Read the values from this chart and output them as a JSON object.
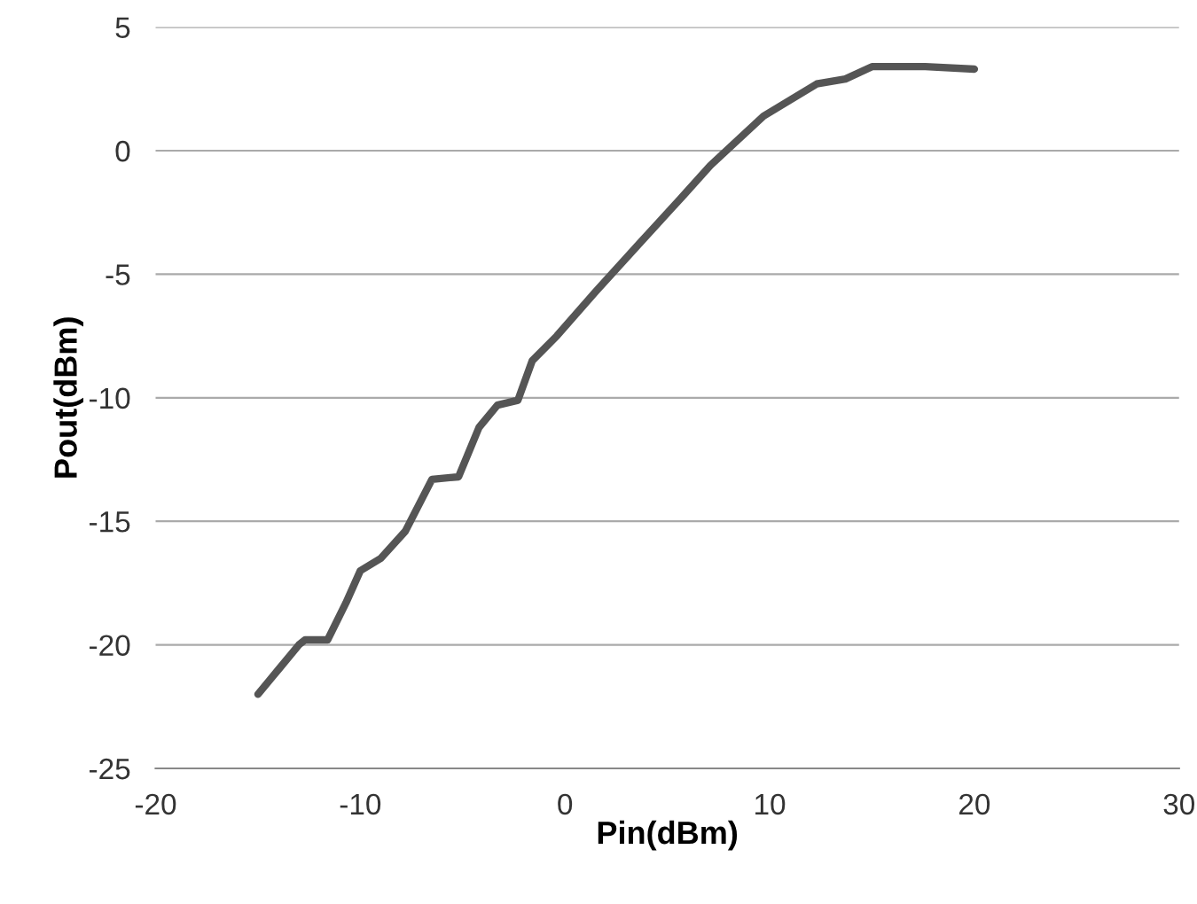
{
  "chart_data": {
    "type": "line",
    "xlabel": "Pin(dBm)",
    "ylabel": "Pout(dBm)",
    "series": [
      {
        "color": "#555555",
        "x": [
          -15,
          -14,
          -13,
          -12.7,
          -11.6,
          -10.7,
          -10,
          -9,
          -7.8,
          -6.5,
          -5.2,
          -4.2,
          -3.3,
          -2.3,
          -1.6,
          -0.4,
          1.5,
          3.7,
          5.8,
          7.1,
          9.7,
          12.3,
          13.7,
          15,
          17.6,
          20
        ],
        "values": [
          -22,
          -21,
          -20,
          -19.8,
          -19.8,
          -18.3,
          -17,
          -16.5,
          -15.4,
          -13.3,
          -13.2,
          -11.2,
          -10.3,
          -10.1,
          -8.5,
          -7.5,
          -5.7,
          -3.7,
          -1.8,
          -0.6,
          1.4,
          2.7,
          2.9,
          3.4,
          3.4,
          3.3
        ]
      }
    ],
    "xlim": [
      -20,
      30
    ],
    "xticks": [
      -20,
      -10,
      0,
      10,
      20,
      30
    ],
    "ylim": [
      -25,
      5
    ],
    "yticks": [
      -25,
      -20,
      -15,
      -10,
      -5,
      0,
      5
    ],
    "grid": "y",
    "legend": false,
    "marker": "none",
    "line_style": "solid"
  }
}
